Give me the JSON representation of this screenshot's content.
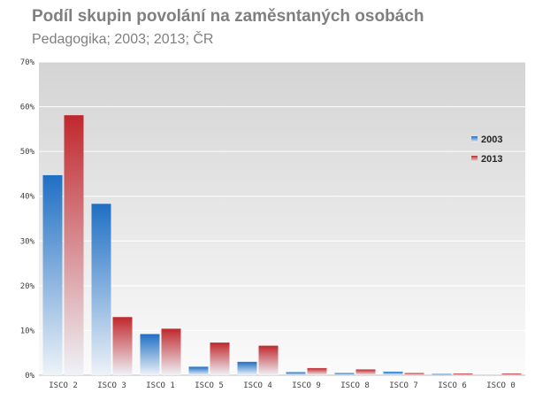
{
  "chart_data": {
    "type": "bar",
    "title": "Podíl skupin povolání na zaměsntaných osobách",
    "subtitle": "Pedagogika; 2003; 2013; ČR",
    "categories": [
      "ISCO 2",
      "ISCO 3",
      "ISCO 1",
      "ISCO 5",
      "ISCO 4",
      "ISCO 9",
      "ISCO 8",
      "ISCO 7",
      "ISCO 6",
      "ISCO 0"
    ],
    "series": [
      {
        "name": "2003",
        "color": "#1f6fc4",
        "values": [
          44.7,
          38.3,
          9.2,
          1.9,
          3.0,
          0.7,
          0.5,
          0.8,
          0.3,
          0.0
        ]
      },
      {
        "name": "2013",
        "color": "#c0282d",
        "values": [
          58.1,
          13.0,
          10.4,
          7.3,
          6.6,
          1.6,
          1.3,
          0.5,
          0.4,
          0.4
        ]
      }
    ],
    "yticks": [
      "0%",
      "10%",
      "20%",
      "30%",
      "40%",
      "50%",
      "60%",
      "70%"
    ],
    "ylim": [
      0,
      70
    ],
    "grid": true,
    "legend": "right"
  }
}
